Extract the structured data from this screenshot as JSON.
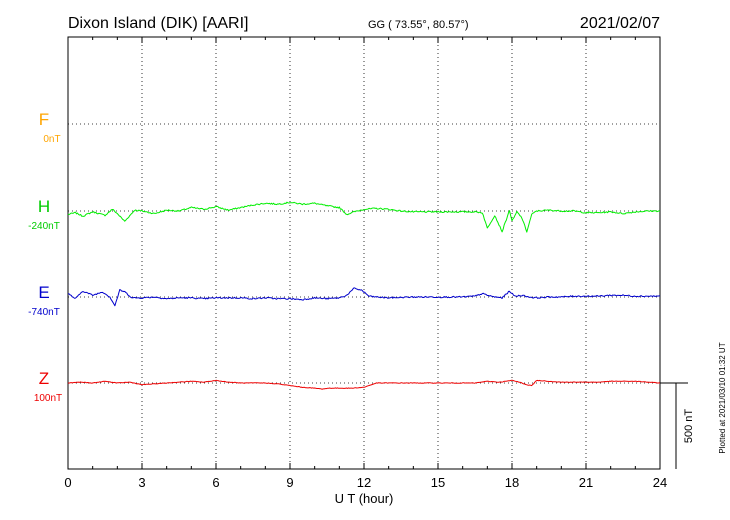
{
  "header": {
    "station": "Dixon Island (DIK)  [AARI]",
    "coords": "GG ( 73.55°,  80.57°)",
    "date": "2021/02/07"
  },
  "footer": {
    "plotted": "Plotted at 2021/03/10 01:32 UT"
  },
  "colors": {
    "F": "#ffa500",
    "H": "#00ee00",
    "E": "#0000cc",
    "Z": "#ee0000",
    "axis": "#000000",
    "grid": "#000000"
  },
  "chart_data": {
    "type": "line",
    "title": "",
    "xlabel": "U T (hour)",
    "xlim": [
      0,
      24
    ],
    "x_ticks": [
      "0",
      "3",
      "6",
      "9",
      "12",
      "15",
      "18",
      "21",
      "24"
    ],
    "grid": true,
    "scale_bar": {
      "label": "500 nT",
      "value_nT": 500
    },
    "panel_range_nT": 500,
    "series": [
      {
        "name": "F",
        "baseline_label": "0nT",
        "color": "#ffa500",
        "x": [],
        "values": []
      },
      {
        "name": "H",
        "baseline_label": "-240nT",
        "color": "#00ee00",
        "x": [
          0,
          0.3,
          0.6,
          1,
          1.5,
          1.8,
          2,
          2.3,
          2.7,
          3,
          3.5,
          4,
          4.5,
          5,
          5.5,
          6,
          6.5,
          7,
          7.5,
          8,
          8.5,
          9,
          9.5,
          10,
          10.5,
          11,
          11.3,
          11.6,
          12,
          12.5,
          13,
          13.5,
          14,
          15,
          16,
          16.5,
          16.8,
          17,
          17.3,
          17.6,
          17.9,
          18,
          18.2,
          18.4,
          18.6,
          18.8,
          19,
          19.5,
          20,
          20.5,
          21,
          21.5,
          22,
          22.5,
          23,
          23.5,
          24
        ],
        "values": [
          -20,
          -10,
          -30,
          -5,
          -25,
          10,
          -15,
          -60,
          5,
          0,
          -15,
          5,
          0,
          20,
          10,
          25,
          5,
          20,
          35,
          45,
          40,
          50,
          40,
          45,
          30,
          20,
          -20,
          -5,
          10,
          15,
          10,
          0,
          -5,
          -5,
          -5,
          -5,
          -10,
          -100,
          -25,
          -120,
          5,
          -60,
          -5,
          -40,
          -120,
          -20,
          0,
          5,
          0,
          0,
          -10,
          -10,
          -5,
          -15,
          -5,
          0,
          0
        ]
      },
      {
        "name": "E",
        "baseline_label": "-740nT",
        "color": "#0000cc",
        "x": [
          0,
          0.3,
          0.6,
          1,
          1.4,
          1.7,
          1.9,
          2.1,
          2.3,
          2.6,
          3,
          3.5,
          4,
          4.5,
          5,
          5.5,
          6,
          6.5,
          7,
          7.5,
          8,
          8.5,
          9,
          9.5,
          10,
          10.5,
          11,
          11.3,
          11.6,
          11.9,
          12.2,
          12.5,
          13,
          14,
          15,
          16,
          16.5,
          16.8,
          17,
          17.3,
          17.6,
          17.9,
          18.1,
          18.4,
          18.7,
          19,
          19.5,
          20,
          20.5,
          21,
          21.5,
          22,
          22.5,
          23,
          23.5,
          24
        ],
        "values": [
          20,
          -10,
          35,
          10,
          30,
          0,
          -50,
          40,
          30,
          -5,
          -5,
          0,
          -10,
          -5,
          -5,
          -10,
          -5,
          -5,
          -5,
          -10,
          -5,
          -10,
          -10,
          -15,
          -5,
          -10,
          -5,
          10,
          50,
          40,
          5,
          0,
          -5,
          0,
          0,
          0,
          5,
          20,
          10,
          0,
          -5,
          35,
          5,
          10,
          0,
          -5,
          0,
          0,
          5,
          5,
          5,
          10,
          10,
          5,
          5,
          5
        ]
      },
      {
        "name": "Z",
        "baseline_label": "100nT",
        "color": "#ee0000",
        "x": [
          0,
          0.5,
          1,
          1.5,
          2,
          2.5,
          3,
          3.5,
          4,
          4.5,
          5,
          5.5,
          6,
          6.5,
          7,
          7.5,
          8,
          8.5,
          9,
          9.5,
          10,
          10.3,
          10.6,
          11,
          11.5,
          12,
          12.5,
          13,
          14,
          15,
          16,
          16.5,
          17,
          17.5,
          18,
          18.3,
          18.6,
          18.8,
          19,
          19.5,
          20,
          20.5,
          21,
          21.5,
          22,
          22.5,
          23,
          23.5,
          24
        ],
        "values": [
          0,
          5,
          0,
          10,
          0,
          5,
          -10,
          -5,
          0,
          5,
          10,
          5,
          15,
          5,
          0,
          0,
          0,
          -5,
          -15,
          -25,
          -30,
          -35,
          -30,
          -30,
          -30,
          -25,
          0,
          0,
          0,
          0,
          0,
          0,
          10,
          5,
          15,
          5,
          -10,
          -15,
          15,
          10,
          5,
          5,
          5,
          5,
          10,
          10,
          10,
          5,
          0
        ]
      }
    ]
  }
}
